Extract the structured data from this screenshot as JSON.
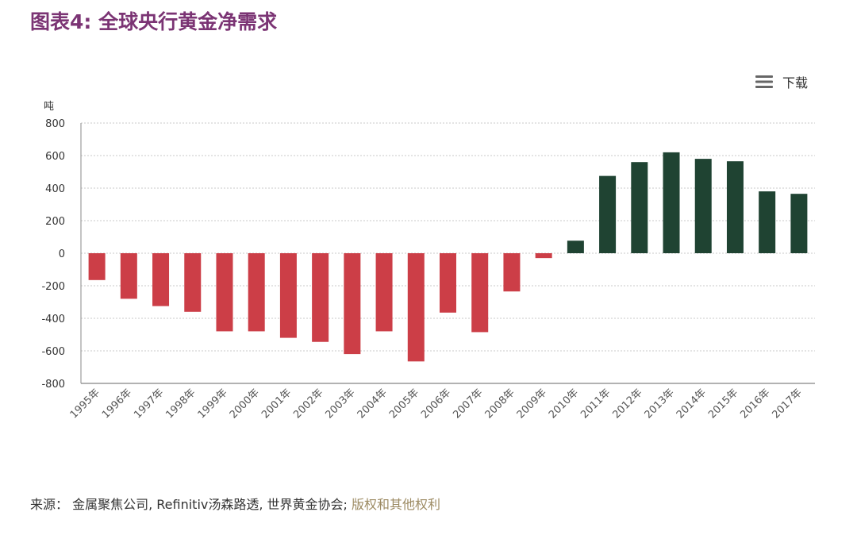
{
  "title": "图表4: 全球央行黄金净需求",
  "download": {
    "label": "下载",
    "icon": "menu-icon"
  },
  "source": {
    "text": "来源： 金属聚焦公司, Refinitiv汤森路透, 世界黄金协会; ",
    "link": "版权和其他权利"
  },
  "colors": {
    "positive": "#1f4332",
    "negative": "#cc3e47",
    "title": "#7b3474",
    "link": "#9c8a62"
  },
  "chart_data": {
    "type": "bar",
    "title": "图表4: 全球央行黄金净需求",
    "ylabel": "吨",
    "xlabel": "",
    "ylim": [
      -800,
      800
    ],
    "yticks": [
      800,
      600,
      400,
      200,
      0,
      -200,
      -400,
      -600,
      -800
    ],
    "grid": true,
    "categories": [
      "1995年",
      "1996年",
      "1997年",
      "1998年",
      "1999年",
      "2000年",
      "2001年",
      "2002年",
      "2003年",
      "2004年",
      "2005年",
      "2006年",
      "2007年",
      "2008年",
      "2009年",
      "2010年",
      "2011年",
      "2012年",
      "2013年",
      "2014年",
      "2015年",
      "2016年",
      "2017年"
    ],
    "values": [
      -165,
      -280,
      -325,
      -360,
      -480,
      -480,
      -520,
      -545,
      -620,
      -480,
      -665,
      -365,
      -485,
      -235,
      -30,
      77,
      475,
      560,
      620,
      580,
      565,
      380,
      365
    ]
  }
}
